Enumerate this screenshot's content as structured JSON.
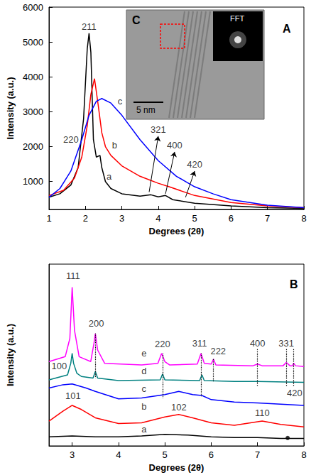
{
  "chart_data": [
    {
      "type": "line",
      "panel_label": "A",
      "x_label": "Degrees (2θ)",
      "y_label": "Intensity (a.u.)",
      "xlim": [
        1,
        8
      ],
      "xticks": [
        1,
        2,
        3,
        4,
        5,
        6,
        7,
        8
      ],
      "ylim": [
        200,
        6000
      ],
      "yticks": [
        1000,
        2000,
        3000,
        4000,
        5000,
        6000
      ],
      "grid": false,
      "series": [
        {
          "name": "a",
          "color": "#000000",
          "x": [
            1,
            1.3,
            1.6,
            1.8,
            1.95,
            2.05,
            2.1,
            2.15,
            2.22,
            2.3,
            2.4,
            2.45,
            2.55,
            2.7,
            3,
            3.5,
            3.8,
            4,
            4.2,
            4.4,
            5,
            6,
            7,
            8
          ],
          "values": [
            550,
            650,
            900,
            1400,
            2800,
            4800,
            5250,
            4700,
            2200,
            1700,
            1750,
            1400,
            1000,
            800,
            650,
            580,
            620,
            560,
            600,
            480,
            380,
            300,
            250,
            230
          ]
        },
        {
          "name": "b",
          "color": "#ff0000",
          "x": [
            1,
            1.4,
            1.7,
            1.9,
            2.05,
            2.15,
            2.25,
            2.35,
            2.45,
            2.55,
            2.7,
            3,
            3.5,
            4,
            4.3,
            5,
            6,
            7,
            8
          ],
          "values": [
            600,
            750,
            1100,
            1700,
            2600,
            3500,
            3950,
            3200,
            2400,
            2000,
            1750,
            1450,
            1150,
            950,
            850,
            600,
            400,
            300,
            250
          ]
        },
        {
          "name": "c",
          "color": "#0000ff",
          "x": [
            1,
            1.3,
            1.6,
            1.9,
            2.1,
            2.3,
            2.45,
            2.7,
            3,
            3.5,
            4,
            4.5,
            5,
            5.5,
            6,
            7,
            8
          ],
          "values": [
            550,
            800,
            1300,
            2200,
            2900,
            3300,
            3380,
            3250,
            2900,
            2200,
            1600,
            1150,
            850,
            650,
            480,
            320,
            250
          ]
        }
      ],
      "annotations": [
        {
          "text": "211",
          "x": 2.1,
          "y": 5250,
          "anchor": "above"
        },
        {
          "text": "220",
          "x": 1.6,
          "y": 2200
        },
        {
          "text": "a",
          "x": 2.65,
          "y": 1150
        },
        {
          "text": "b",
          "x": 2.8,
          "y": 2050
        },
        {
          "text": "c",
          "x": 2.95,
          "y": 3300
        },
        {
          "text": "321",
          "x": 4.0,
          "y": 2300,
          "arrow_from": [
            3.75,
            700
          ]
        },
        {
          "text": "400",
          "x": 4.45,
          "y": 1850,
          "arrow_from": [
            4.2,
            650
          ]
        },
        {
          "text": "420",
          "x": 5.0,
          "y": 1300,
          "arrow_from": [
            4.75,
            550
          ]
        }
      ],
      "inset": {
        "label": "C",
        "fft_label": "FFT",
        "scale_bar": "5 nm"
      }
    },
    {
      "type": "line",
      "panel_label": "B",
      "x_label": "Degrees (2θ)",
      "y_label": "Intensity (a.u.)",
      "xlim": [
        2.5,
        8
      ],
      "xticks": [
        3,
        4,
        5,
        6,
        7,
        8
      ],
      "ylim": [
        0,
        11
      ],
      "tick_labels": "x",
      "grid": false,
      "series": [
        {
          "name": "a",
          "color": "#000000",
          "x": [
            2.5,
            3,
            3.5,
            4,
            4.5,
            5,
            5.5,
            6,
            6.5,
            7,
            7.5,
            8
          ],
          "values": [
            0.55,
            0.6,
            0.55,
            0.55,
            0.6,
            0.7,
            0.65,
            0.55,
            0.5,
            0.5,
            0.45,
            0.45
          ]
        },
        {
          "name": "b",
          "color": "#ff0000",
          "x": [
            2.5,
            2.8,
            3,
            3.2,
            3.5,
            4,
            4.5,
            5,
            5.3,
            5.6,
            6,
            6.5,
            7.1,
            7.5,
            8
          ],
          "values": [
            1.5,
            2.1,
            2.45,
            2.2,
            1.7,
            1.35,
            1.4,
            1.75,
            1.9,
            1.7,
            1.4,
            1.25,
            1.5,
            1.3,
            1.15
          ]
        },
        {
          "name": "c",
          "color": "#0000ff",
          "x": [
            2.5,
            2.8,
            3,
            3.3,
            3.5,
            4,
            4.5,
            5,
            5.3,
            5.6,
            5.8,
            6,
            6.5,
            7,
            8
          ],
          "values": [
            3.5,
            3.7,
            3.75,
            3.5,
            3.3,
            2.85,
            2.9,
            3.1,
            3.3,
            3.1,
            3.05,
            2.8,
            2.65,
            2.6,
            2.45
          ]
        },
        {
          "name": "d",
          "color": "#008080",
          "x": [
            2.5,
            2.9,
            2.97,
            3,
            3.03,
            3.1,
            3.2,
            3.45,
            3.5,
            3.55,
            4,
            4.9,
            4.95,
            5,
            5.75,
            5.8,
            5.85,
            6.5,
            7,
            8
          ],
          "values": [
            4.0,
            4.3,
            5.0,
            5.6,
            5.0,
            4.4,
            4.2,
            4.1,
            4.5,
            4.1,
            3.95,
            4.0,
            4.35,
            4.0,
            3.95,
            4.3,
            3.95,
            3.9,
            3.9,
            3.85
          ]
        },
        {
          "name": "e",
          "color": "#ff00ff",
          "x": [
            2.5,
            2.85,
            2.95,
            3,
            3.05,
            3.15,
            3.4,
            3.47,
            3.5,
            3.55,
            3.7,
            4.5,
            4.85,
            4.93,
            5,
            5.1,
            5.7,
            5.78,
            5.85,
            6,
            6.05,
            6.1,
            6.9,
            7,
            7.1,
            7.55,
            7.62,
            7.7,
            7.75,
            7.78,
            7.82,
            8
          ],
          "values": [
            5.1,
            5.4,
            6.5,
            9.6,
            7.0,
            5.4,
            5.1,
            6.2,
            6.8,
            5.8,
            5.0,
            4.9,
            5.0,
            5.6,
            5.1,
            4.9,
            4.95,
            5.6,
            5.0,
            4.95,
            5.25,
            4.9,
            4.85,
            4.95,
            4.85,
            4.85,
            5.05,
            4.85,
            4.85,
            5.0,
            4.85,
            4.8
          ]
        }
      ],
      "dots": [
        {
          "x": 7.65,
          "y": 0.48,
          "color": "#000000"
        }
      ],
      "guides": [
        {
          "x": 3.5,
          "y_from": 6.8,
          "y_to": 4.1
        },
        {
          "x": 4.95,
          "y_from": 5.6,
          "y_to": 2.9
        },
        {
          "x": 5.78,
          "y_from": 5.6,
          "y_to": 3.0
        },
        {
          "x": 6.05,
          "y_from": 5.25,
          "y_to": 3.9
        },
        {
          "x": 7.0,
          "y_from": 5.85,
          "y_to": 3.6
        },
        {
          "x": 7.62,
          "y_from": 5.85,
          "y_to": 3.6
        },
        {
          "x": 7.78,
          "y_from": 5.85,
          "y_to": 3.6
        }
      ],
      "annotations": [
        {
          "text": "111",
          "x": 3.02,
          "y": 10.3
        },
        {
          "text": "200",
          "x": 3.52,
          "y": 7.4
        },
        {
          "text": "220",
          "x": 4.95,
          "y": 6.15
        },
        {
          "text": "311",
          "x": 5.75,
          "y": 6.2
        },
        {
          "text": "222",
          "x": 6.15,
          "y": 5.75
        },
        {
          "text": "400",
          "x": 7.0,
          "y": 6.2
        },
        {
          "text": "331",
          "x": 7.62,
          "y": 6.2
        },
        {
          "text": "420",
          "x": 7.8,
          "y": 3.2
        },
        {
          "text": "100",
          "x": 2.72,
          "y": 4.85
        },
        {
          "text": "101",
          "x": 3.02,
          "y": 3.05
        },
        {
          "text": "102",
          "x": 5.3,
          "y": 2.35
        },
        {
          "text": "110",
          "x": 7.1,
          "y": 2.0
        },
        {
          "text": "e",
          "x": 4.55,
          "y": 5.6
        },
        {
          "text": "d",
          "x": 4.55,
          "y": 4.55
        },
        {
          "text": "c",
          "x": 4.55,
          "y": 3.45
        },
        {
          "text": "b",
          "x": 4.55,
          "y": 2.4
        },
        {
          "text": "a",
          "x": 4.55,
          "y": 1.0
        }
      ]
    }
  ]
}
